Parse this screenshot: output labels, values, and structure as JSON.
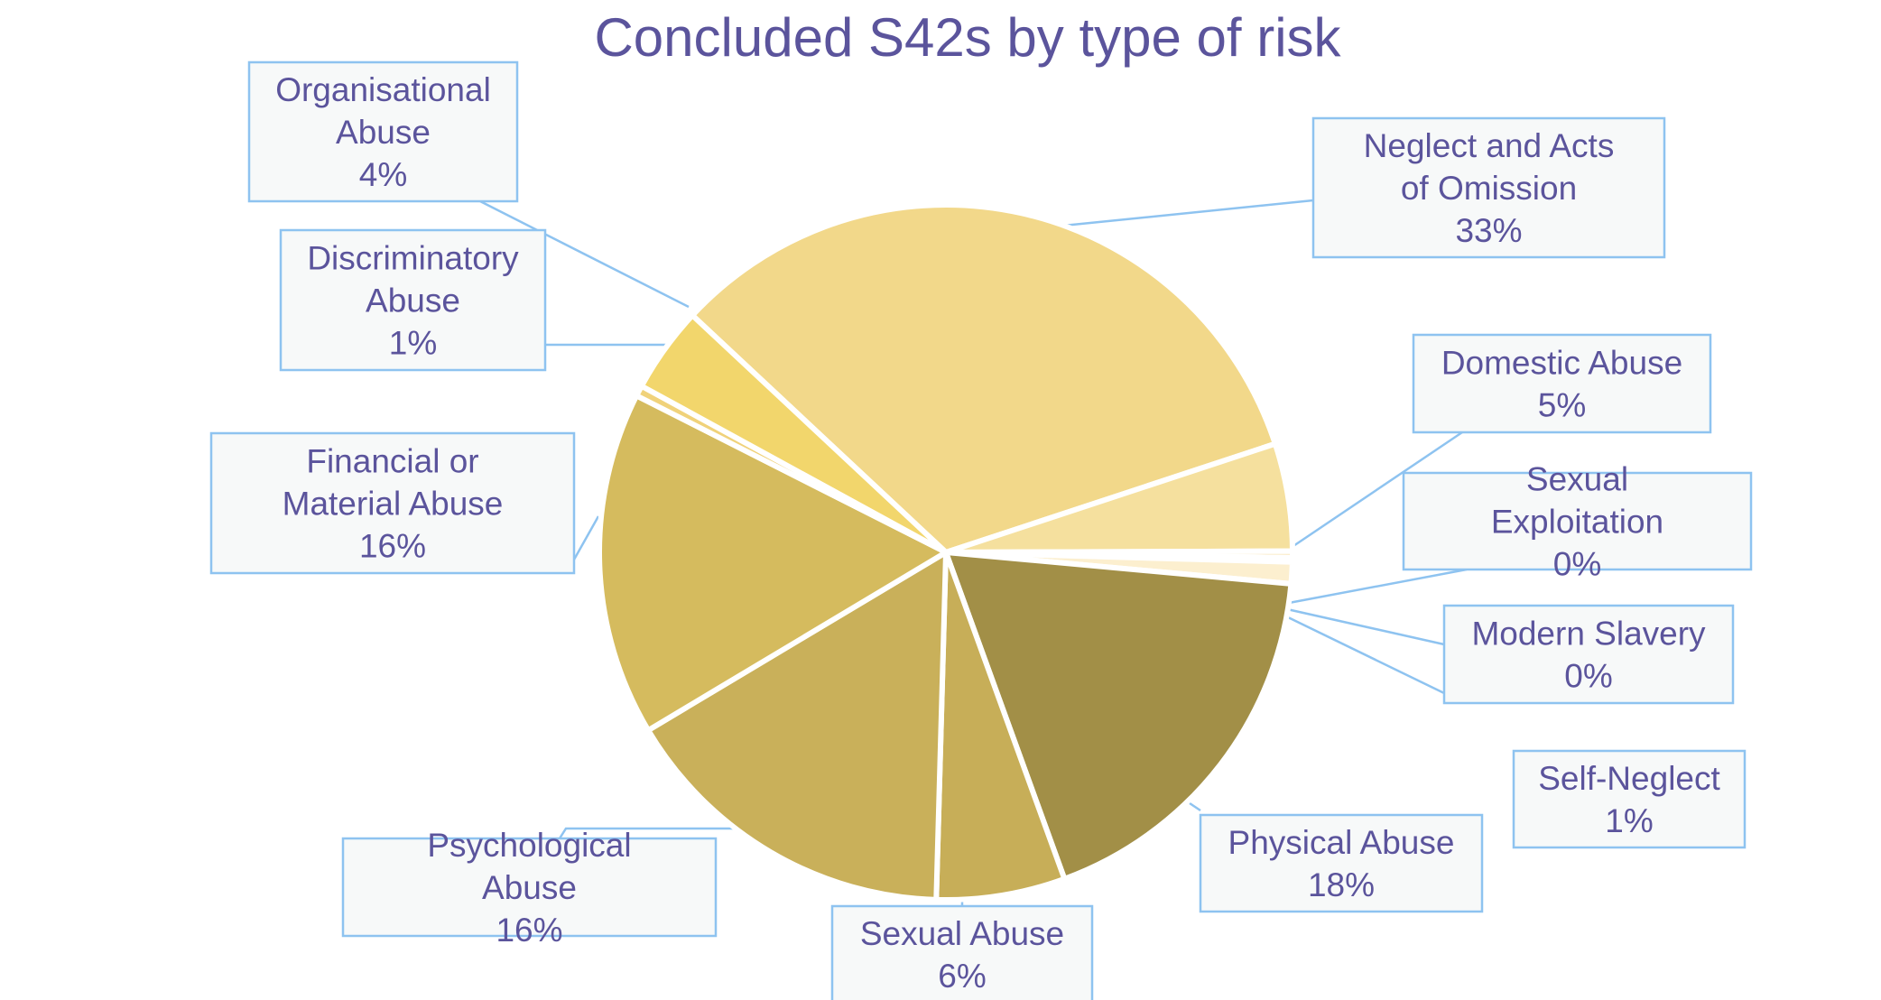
{
  "chart_data": {
    "type": "pie",
    "title": "Concluded S42s by type of risk",
    "legend": "none",
    "slices": [
      {
        "label": "Neglect and Acts of Omission",
        "value": 33,
        "value_label": "33%",
        "color": "#f2d88a"
      },
      {
        "label": "Domestic Abuse",
        "value": 5,
        "value_label": "5%",
        "color": "#f5e09e"
      },
      {
        "label": "Sexual Exploitation",
        "value": 0.3,
        "value_label": "0%",
        "color": "#fae6b8"
      },
      {
        "label": "Modern Slavery",
        "value": 0.2,
        "value_label": "0%",
        "color": "#faebc6"
      },
      {
        "label": "Self-Neglect",
        "value": 1,
        "value_label": "1%",
        "color": "#fcefcf"
      },
      {
        "label": "Physical Abuse",
        "value": 18,
        "value_label": "18%",
        "color": "#a28f47"
      },
      {
        "label": "Sexual Abuse",
        "value": 6,
        "value_label": "6%",
        "color": "#c7ae58"
      },
      {
        "label": "Psychological Abuse",
        "value": 16,
        "value_label": "16%",
        "color": "#c9b05a"
      },
      {
        "label": "Financial or Material Abuse",
        "value": 16,
        "value_label": "16%",
        "color": "#d5bb5e"
      },
      {
        "label": "Discriminatory Abuse",
        "value": 0.5,
        "value_label": "1%",
        "color": "#f0d27a"
      },
      {
        "label": "Organisational Abuse",
        "value": 4,
        "value_label": "4%",
        "color": "#f2d66c"
      }
    ]
  }
}
